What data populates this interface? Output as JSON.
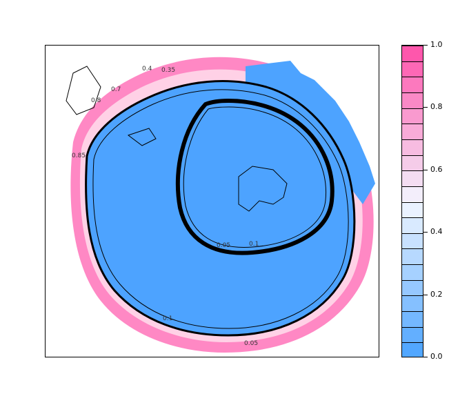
{
  "legend": {
    "ticks": [
      "1.0",
      "0.8",
      "0.6",
      "0.4",
      "0.2",
      "0.0"
    ],
    "tick_values": [
      1.0,
      0.8,
      0.6,
      0.4,
      0.2,
      0.0
    ],
    "range": [
      0.0,
      1.0
    ],
    "bands": 20,
    "low_color": "#4aa3ff",
    "mid_color": "#f2f6ff",
    "high_color": "#ff4fa8"
  },
  "map": {
    "contour_labels": [
      "0.4",
      "0.35",
      "0.7",
      "0.8",
      "0.85",
      "0.05",
      "0.1",
      "0.1",
      "0.05"
    ],
    "field_color": "#4da3ff",
    "boundary_color": "#000000"
  }
}
